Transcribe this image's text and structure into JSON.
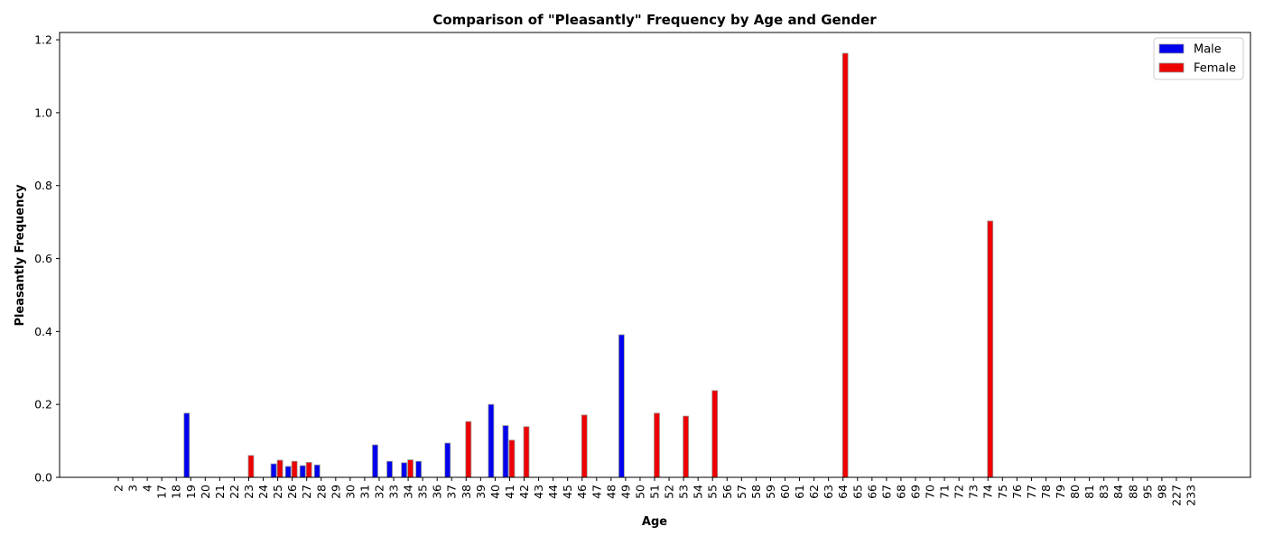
{
  "chart_data": {
    "type": "bar",
    "title": "Comparison of \"Pleasantly\" Frequency by Age and Gender",
    "xlabel": "Age",
    "ylabel": "Pleasantly Frequency",
    "ylim": [
      0,
      1.22
    ],
    "yticks": [
      "0.0",
      "0.2",
      "0.4",
      "0.6",
      "0.8",
      "1.0",
      "1.2"
    ],
    "legend_position": "top-right",
    "grid": false,
    "categories": [
      "2",
      "3",
      "4",
      "17",
      "18",
      "19",
      "20",
      "21",
      "22",
      "23",
      "24",
      "25",
      "26",
      "27",
      "28",
      "29",
      "30",
      "31",
      "32",
      "33",
      "34",
      "35",
      "36",
      "37",
      "38",
      "39",
      "40",
      "41",
      "42",
      "43",
      "44",
      "45",
      "46",
      "47",
      "48",
      "49",
      "50",
      "51",
      "52",
      "53",
      "54",
      "55",
      "56",
      "57",
      "58",
      "59",
      "60",
      "61",
      "62",
      "63",
      "64",
      "65",
      "66",
      "67",
      "68",
      "69",
      "70",
      "71",
      "72",
      "73",
      "74",
      "75",
      "76",
      "77",
      "78",
      "79",
      "80",
      "81",
      "83",
      "84",
      "88",
      "95",
      "98",
      "227",
      "233"
    ],
    "series": [
      {
        "name": "Male",
        "color": "#0000ee",
        "values": [
          0,
          0,
          0,
          0,
          0,
          0.176,
          0,
          0,
          0,
          0,
          0,
          0.037,
          0.03,
          0.032,
          0.034,
          0,
          0,
          0,
          0.089,
          0.044,
          0.04,
          0.044,
          0,
          0.094,
          0,
          0,
          0.2,
          0.142,
          0,
          0,
          0,
          0,
          0,
          0,
          0,
          0.391,
          0,
          0,
          0,
          0,
          0,
          0,
          0,
          0,
          0,
          0,
          0,
          0,
          0,
          0,
          0,
          0,
          0,
          0,
          0,
          0,
          0,
          0,
          0,
          0,
          0,
          0,
          0,
          0,
          0,
          0,
          0,
          0,
          0,
          0,
          0,
          0,
          0,
          0,
          0
        ]
      },
      {
        "name": "Female",
        "color": "#ee0000",
        "values": [
          0,
          0,
          0,
          0,
          0,
          0,
          0,
          0,
          0,
          0.06,
          0,
          0.047,
          0.044,
          0.041,
          0,
          0,
          0,
          0,
          0,
          0,
          0.048,
          0,
          0,
          0,
          0.153,
          0,
          0,
          0.102,
          0.139,
          0,
          0,
          0,
          0.171,
          0,
          0,
          0,
          0,
          0.176,
          0,
          0.168,
          0,
          0.238,
          0,
          0,
          0,
          0,
          0,
          0,
          0,
          0,
          1.163,
          0,
          0,
          0,
          0,
          0,
          0,
          0,
          0,
          0,
          0.703,
          0,
          0,
          0,
          0,
          0,
          0,
          0,
          0,
          0,
          0,
          0,
          0,
          0,
          0
        ]
      }
    ]
  }
}
